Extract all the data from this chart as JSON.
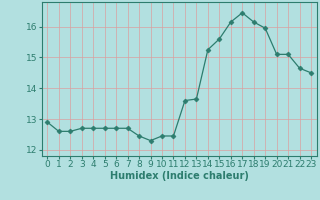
{
  "x": [
    0,
    1,
    2,
    3,
    4,
    5,
    6,
    7,
    8,
    9,
    10,
    11,
    12,
    13,
    14,
    15,
    16,
    17,
    18,
    19,
    20,
    21,
    22,
    23
  ],
  "y": [
    12.9,
    12.6,
    12.6,
    12.7,
    12.7,
    12.7,
    12.7,
    12.7,
    12.45,
    12.3,
    12.45,
    12.45,
    13.6,
    13.65,
    15.25,
    15.6,
    16.15,
    16.45,
    16.15,
    15.95,
    15.1,
    15.1,
    14.65,
    14.5
  ],
  "line_color": "#2d7d6e",
  "marker": "D",
  "marker_size": 2.5,
  "bg_color": "#b2e0e0",
  "grid_color": "#d9a0a0",
  "xlabel": "Humidex (Indice chaleur)",
  "ylabel": "",
  "xlim": [
    -0.5,
    23.5
  ],
  "ylim": [
    11.8,
    16.8
  ],
  "yticks": [
    12,
    13,
    14,
    15,
    16
  ],
  "xticks": [
    0,
    1,
    2,
    3,
    4,
    5,
    6,
    7,
    8,
    9,
    10,
    11,
    12,
    13,
    14,
    15,
    16,
    17,
    18,
    19,
    20,
    21,
    22,
    23
  ],
  "xlabel_fontsize": 7,
  "tick_fontsize": 6.5
}
